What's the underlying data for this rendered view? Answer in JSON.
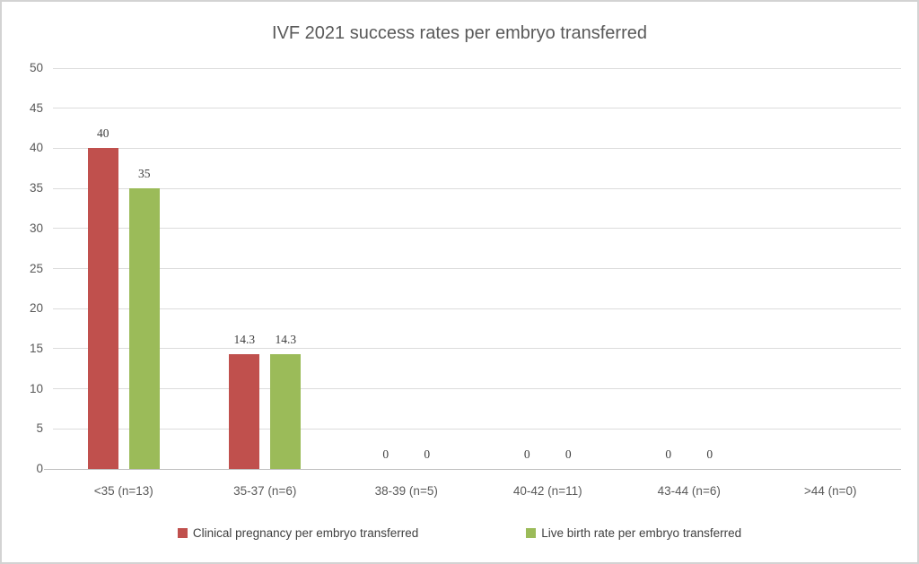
{
  "chart_data": {
    "type": "bar",
    "title": "IVF 2021 success rates per embryo transferred",
    "categories": [
      "<35 (n=13)",
      "35-37 (n=6)",
      "38-39 (n=5)",
      "40-42 (n=11)",
      "43-44 (n=6)",
      ">44 (n=0)"
    ],
    "series": [
      {
        "name": "Clinical pregnancy per embryo transferred",
        "color": "#C0504D",
        "values": [
          40,
          14.3,
          0,
          0,
          0,
          null
        ],
        "labels": [
          "40",
          "14.3",
          "0",
          "0",
          "0",
          ""
        ]
      },
      {
        "name": "Live birth rate per embryo transferred",
        "color": "#9BBB59",
        "values": [
          35,
          14.3,
          0,
          0,
          0,
          null
        ],
        "labels": [
          "35",
          "14.3",
          "0",
          "0",
          "0",
          ""
        ]
      }
    ],
    "y_axis": {
      "min": 0,
      "max": 50,
      "step": 5,
      "ticks": [
        "0",
        "5",
        "10",
        "15",
        "20",
        "25",
        "30",
        "35",
        "40",
        "45",
        "50"
      ]
    },
    "grid": true,
    "legend_position": "bottom",
    "colors": {
      "gridline": "#dcdcdc",
      "axis_line": "#bfbfbf",
      "axis_text": "#595959",
      "data_label_text": "#404040",
      "title_text": "#595959",
      "legend_text": "#3f3f3f",
      "frame_border": "#d3d3d3",
      "background": "#ffffff"
    }
  }
}
